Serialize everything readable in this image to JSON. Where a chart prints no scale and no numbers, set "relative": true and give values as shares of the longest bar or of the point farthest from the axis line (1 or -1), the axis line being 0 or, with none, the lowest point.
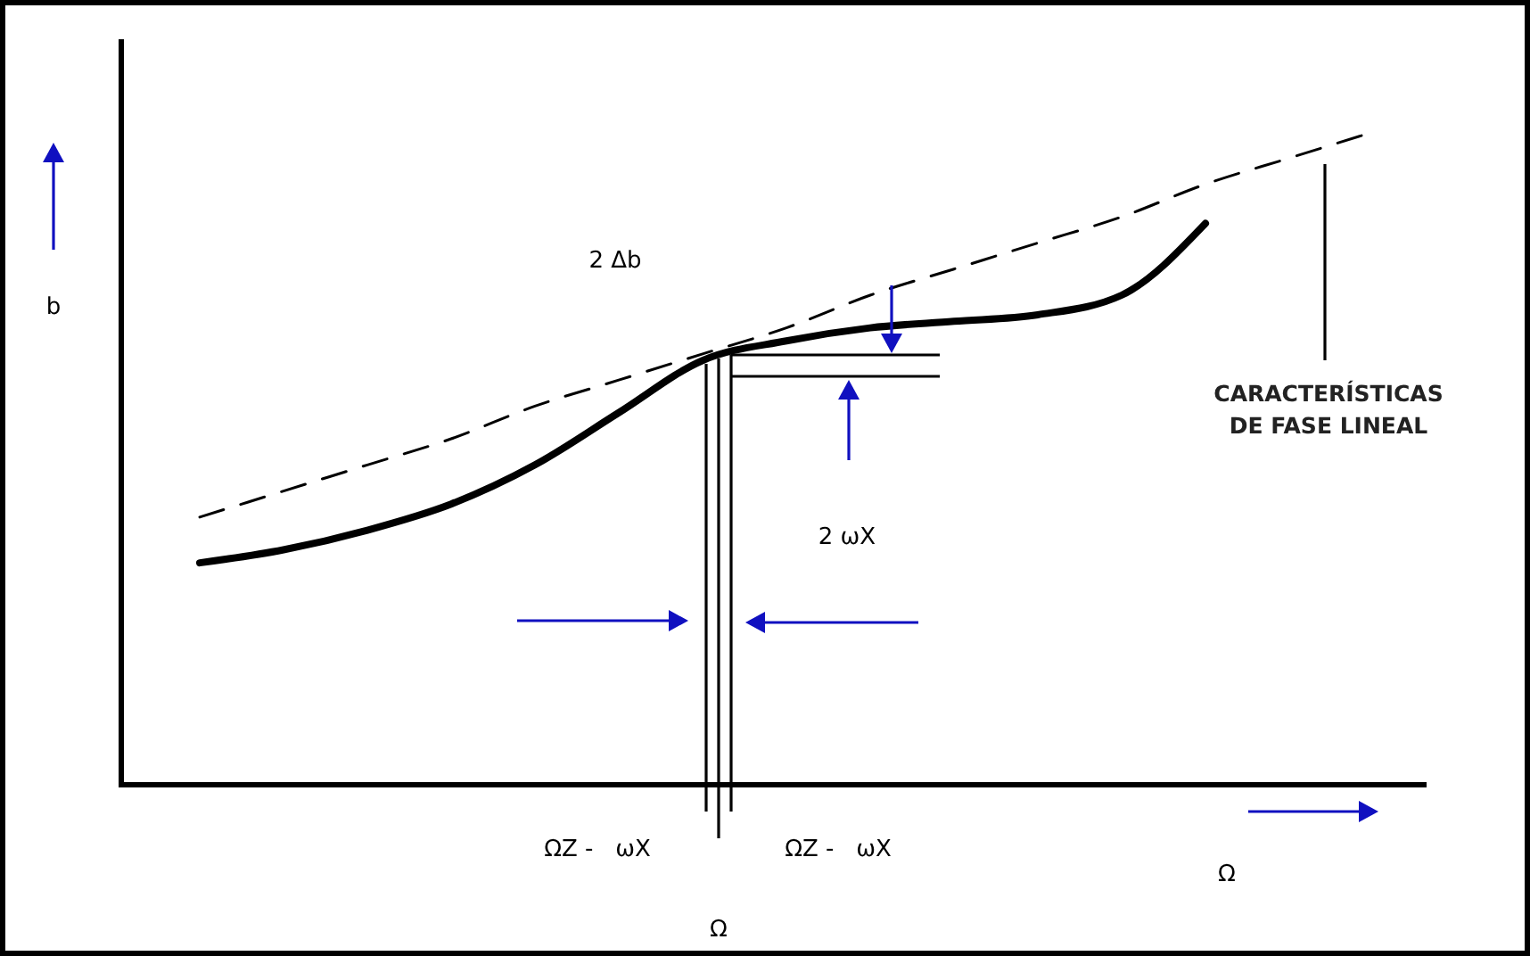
{
  "chart_data": {
    "type": "line",
    "relative": true,
    "xlabel": "Ω",
    "ylabel": "b",
    "legend": false,
    "marker": "none",
    "categories": [
      null,
      null,
      null,
      null,
      null,
      null,
      null,
      null,
      null,
      null,
      null,
      null,
      null,
      null,
      null
    ],
    "series": [
      {
        "color": "#000000",
        "line_style": "solid",
        "values": [
          0.34,
          0.36,
          0.39,
          0.43,
          0.49,
          0.57,
          0.65,
          0.68,
          0.7,
          0.71,
          0.72,
          0.75,
          0.86,
          null,
          null
        ]
      },
      {
        "name": "CARACTERÍSTICAS DE FASE LINEAL",
        "color": "#000000",
        "line_style": "dashed",
        "values": [
          0.41,
          0.45,
          0.49,
          0.53,
          0.58,
          0.62,
          0.66,
          0.7,
          0.75,
          0.79,
          0.83,
          0.87,
          0.92,
          0.96,
          1
        ]
      }
    ],
    "annotations": [
      "2 Δb",
      "2 ωX",
      "ΩZ -   ωX",
      "ΩZ -   ωX",
      "Ω"
    ]
  }
}
